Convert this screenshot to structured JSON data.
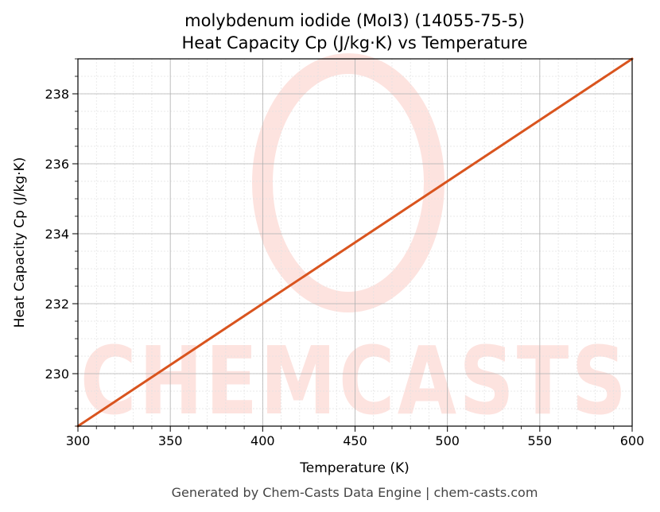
{
  "chart_data": {
    "type": "line",
    "title": "molybdenum iodide (MoI3) (14055-75-5)",
    "subtitle": "Heat Capacity Cp (J/kg·K) vs Temperature",
    "xlabel": "Temperature (K)",
    "ylabel": "Heat Capacity Cp (J/kg·K)",
    "xlim": [
      300,
      600
    ],
    "ylim": [
      228.5,
      239.0
    ],
    "xticks": [
      300,
      350,
      400,
      450,
      500,
      550,
      600
    ],
    "yticks": [
      230,
      232,
      234,
      236,
      238
    ],
    "grid": true,
    "series": [
      {
        "color": "#d9541e",
        "x": [
          300,
          350,
          400,
          450,
          500,
          550,
          600
        ],
        "y": [
          228.5,
          230.25,
          232.0,
          233.75,
          235.5,
          237.25,
          239.0
        ]
      }
    ]
  },
  "watermark": {
    "text": "CHEMCASTS",
    "color": "#fde3df"
  },
  "footer": "Generated by Chem-Casts Data Engine | chem-casts.com"
}
